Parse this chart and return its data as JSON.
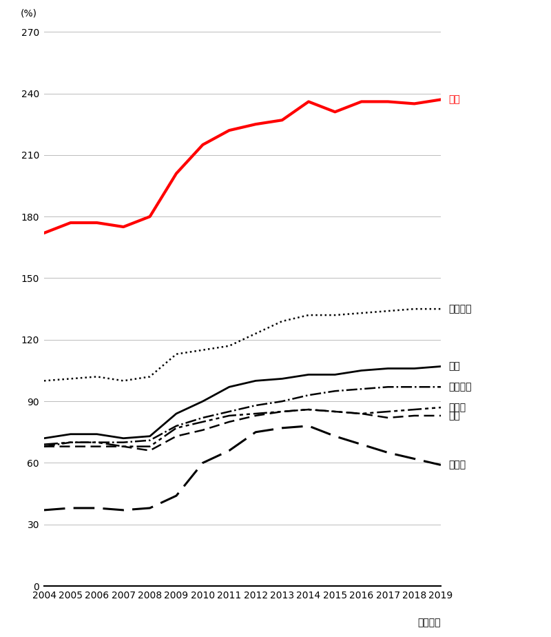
{
  "years": [
    2004,
    2005,
    2006,
    2007,
    2008,
    2009,
    2010,
    2011,
    2012,
    2013,
    2014,
    2015,
    2016,
    2017,
    2018,
    2019
  ],
  "japan": [
    172,
    177,
    177,
    175,
    180,
    201,
    215,
    222,
    225,
    227,
    236,
    231,
    236,
    236,
    235,
    237
  ],
  "italy": [
    100,
    101,
    102,
    100,
    102,
    113,
    115,
    117,
    123,
    129,
    132,
    132,
    133,
    134,
    135,
    135
  ],
  "usa": [
    72,
    74,
    74,
    72,
    73,
    84,
    90,
    97,
    100,
    101,
    103,
    103,
    105,
    106,
    106,
    107
  ],
  "france": [
    68,
    70,
    70,
    70,
    71,
    78,
    82,
    85,
    88,
    90,
    93,
    95,
    96,
    97,
    97,
    97
  ],
  "canada": [
    69,
    70,
    70,
    68,
    68,
    77,
    80,
    83,
    84,
    85,
    86,
    85,
    84,
    85,
    86,
    87
  ],
  "uk": [
    68,
    68,
    68,
    68,
    66,
    73,
    76,
    80,
    83,
    85,
    86,
    85,
    84,
    82,
    83,
    83
  ],
  "germany": [
    37,
    38,
    38,
    37,
    38,
    44,
    60,
    66,
    75,
    77,
    78,
    73,
    69,
    65,
    62,
    59
  ],
  "japan_color": "#ff0000",
  "other_color": "#000000",
  "unit_label": "(%)",
  "xlabel": "（暦年）",
  "ylim": [
    0,
    270
  ],
  "yticks": [
    0,
    30,
    60,
    90,
    120,
    150,
    180,
    210,
    240,
    270
  ],
  "labels": {
    "japan": "日本",
    "italy": "イタリア",
    "usa": "米国",
    "france": "フランス",
    "canada": "カナダ",
    "uk": "英国",
    "germany": "ドイツ"
  }
}
